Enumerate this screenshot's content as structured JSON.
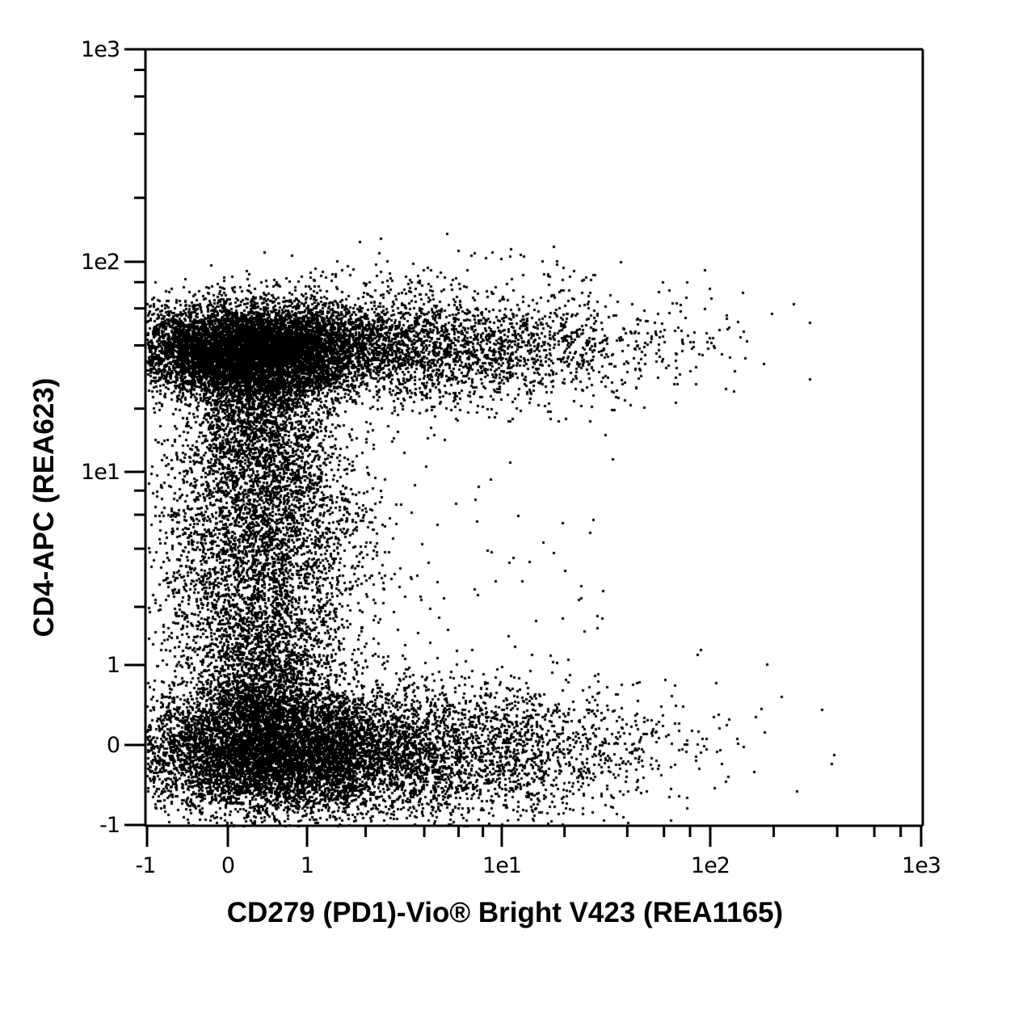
{
  "chart_data": {
    "type": "scatter",
    "subtype": "flow-cytometry-dot-plot",
    "title": "",
    "xlabel": "CD279 (PD1)-Vio® Bright V423 (REA1165)",
    "ylabel": "CD4-APC (REA623)",
    "x_scale": "biexponential/log",
    "y_scale": "biexponential/log",
    "xlim": [
      -1,
      1000
    ],
    "ylim": [
      -1,
      1000
    ],
    "grid": false,
    "legend": null,
    "x_ticks": [
      {
        "value": -1,
        "label": "-1"
      },
      {
        "value": 0,
        "label": "0"
      },
      {
        "value": 1,
        "label": "1"
      },
      {
        "value": 10,
        "label": "1e1"
      },
      {
        "value": 100,
        "label": "1e2"
      },
      {
        "value": 1000,
        "label": "1e3"
      }
    ],
    "y_ticks": [
      {
        "value": 1000,
        "label": "1e3"
      },
      {
        "value": 100,
        "label": "1e2"
      },
      {
        "value": 10,
        "label": "1e1"
      },
      {
        "value": 1,
        "label": "1"
      },
      {
        "value": 0,
        "label": "0"
      },
      {
        "value": -1,
        "label": "-1"
      }
    ],
    "populations": [
      {
        "name": "CD4+ PD1-/low",
        "center_x": 0.3,
        "center_y": 40,
        "x_range": [
          -1,
          30
        ],
        "y_range": [
          20,
          100
        ],
        "relative_density": "high"
      },
      {
        "name": "CD4- PD1-/low",
        "center_x": 0.5,
        "center_y": 0,
        "x_range": [
          -1,
          25
        ],
        "y_range": [
          -1,
          1
        ],
        "relative_density": "very high"
      },
      {
        "name": "CD4 intermediate bridge",
        "center_x": 0.6,
        "center_y": 2,
        "x_range": [
          -0.5,
          3
        ],
        "y_range": [
          1,
          20
        ],
        "relative_density": "medium"
      }
    ],
    "point_color": "#000000",
    "background_color": "#ffffff"
  },
  "axes": {
    "x_tick_labels": [
      "-1",
      "0",
      "1",
      "1e1",
      "1e2",
      "1e3"
    ],
    "y_tick_labels": [
      "1e3",
      "1e2",
      "1e1",
      "1",
      "0",
      "-1"
    ]
  }
}
